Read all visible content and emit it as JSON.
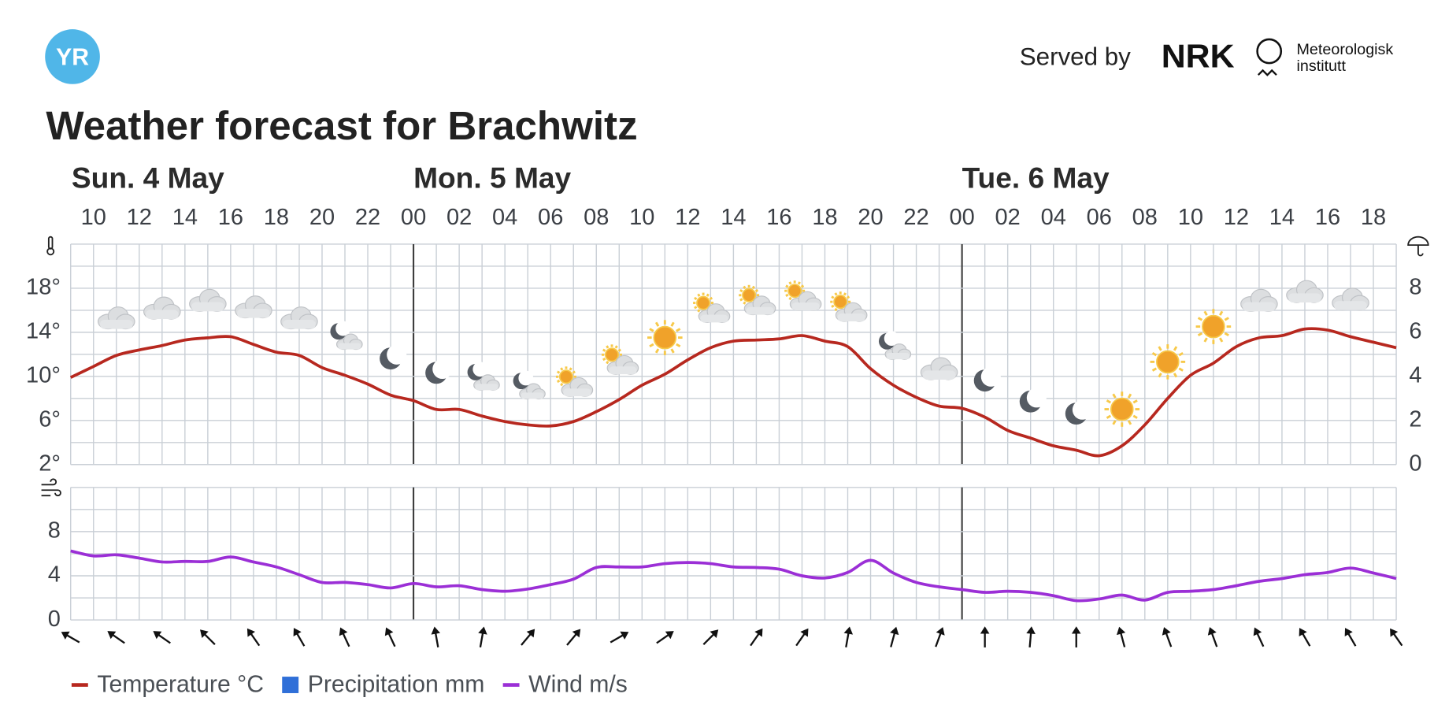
{
  "header": {
    "logo": "YR",
    "served_by": "Served by",
    "partner": "NRK",
    "institute": [
      "Meteorologisk",
      "institutt"
    ]
  },
  "title": "Weather forecast for Brachwitz",
  "chart_data": [
    {
      "type": "line",
      "days": [
        "Sun. 4 May",
        "Mon. 5 May",
        "Tue. 6 May"
      ],
      "categories": [
        null,
        "10",
        null,
        "12",
        null,
        "14",
        null,
        "16",
        null,
        "18",
        null,
        "20",
        null,
        "22",
        null,
        "00",
        null,
        "02",
        null,
        "04",
        null,
        "06",
        null,
        "08",
        null,
        "10",
        null,
        "12",
        null,
        "14",
        null,
        "16",
        null,
        "18",
        null,
        "20",
        null,
        "22",
        null,
        "00",
        null,
        "02",
        null,
        "04",
        null,
        "06",
        null,
        "08",
        null,
        "10",
        null,
        "12",
        null,
        "14",
        null,
        "16",
        null,
        "18",
        null
      ],
      "ylim": [
        2,
        22
      ],
      "yticks": [
        {
          "value": 2,
          "label": "2°"
        },
        {
          "value": 6,
          "label": "6°"
        },
        {
          "value": 10,
          "label": "10°"
        },
        {
          "value": 14,
          "label": "14°"
        },
        {
          "value": 18,
          "label": "18°"
        }
      ],
      "y2lim": [
        0,
        10
      ],
      "y2ticks": [
        0,
        2,
        4,
        6,
        8
      ],
      "grid": true,
      "series": [
        {
          "name": "Temperature °C",
          "color": "#b7281f",
          "values": [
            9.9,
            10.9,
            11.9,
            12.4,
            12.8,
            13.3,
            13.5,
            13.6,
            12.9,
            12.2,
            11.9,
            10.8,
            10.1,
            9.3,
            8.3,
            7.8,
            7.0,
            7.0,
            6.4,
            5.9,
            5.6,
            5.5,
            5.9,
            6.8,
            7.9,
            9.2,
            10.2,
            11.5,
            12.6,
            13.2,
            13.3,
            13.4,
            13.7,
            13.2,
            12.7,
            10.7,
            9.2,
            8.1,
            7.3,
            7.1,
            6.3,
            5.1,
            4.4,
            3.7,
            3.3,
            2.8,
            3.7,
            5.6,
            8.0,
            10.1,
            11.2,
            12.7,
            13.5,
            13.7,
            14.3,
            14.2,
            13.6,
            13.1,
            12.6
          ]
        },
        {
          "name": "Precipitation mm",
          "color": "#2f6fd8",
          "type": "bar",
          "axis": "y2",
          "values": [
            0,
            0,
            0,
            0,
            0,
            0,
            0,
            0,
            0,
            0,
            0,
            0,
            0,
            0,
            0,
            0,
            0,
            0,
            0,
            0,
            0,
            0,
            0,
            0,
            0,
            0,
            0,
            0,
            0,
            0,
            0,
            0,
            0,
            0,
            0,
            0,
            0,
            0,
            0,
            0,
            0,
            0,
            0,
            0,
            0,
            0,
            0,
            0,
            0,
            0,
            0,
            0,
            0,
            0,
            0,
            0,
            0,
            0,
            0
          ]
        }
      ]
    },
    {
      "type": "line",
      "ylim": [
        0,
        12
      ],
      "yticks": [
        0,
        4,
        8
      ],
      "grid": true,
      "series": [
        {
          "name": "Wind m/s",
          "color": "#9b2fd6",
          "values": [
            6.25,
            5.8,
            5.9,
            5.6,
            5.25,
            5.3,
            5.3,
            5.7,
            5.25,
            4.8,
            4.1,
            3.4,
            3.4,
            3.2,
            2.9,
            3.3,
            3.0,
            3.1,
            2.75,
            2.6,
            2.8,
            3.2,
            3.7,
            4.75,
            4.8,
            4.8,
            5.1,
            5.2,
            5.1,
            4.8,
            4.75,
            4.6,
            4.0,
            3.8,
            4.3,
            5.4,
            4.25,
            3.4,
            3.0,
            2.75,
            2.5,
            2.6,
            2.5,
            2.2,
            1.75,
            1.9,
            2.25,
            1.8,
            2.5,
            2.6,
            2.75,
            3.1,
            3.5,
            3.75,
            4.1,
            4.3,
            4.7,
            4.25,
            3.75
          ]
        }
      ],
      "wind_direction": [
        120,
        null,
        125,
        null,
        125,
        null,
        135,
        null,
        145,
        null,
        150,
        null,
        155,
        null,
        155,
        null,
        170,
        null,
        190,
        null,
        220,
        null,
        220,
        null,
        240,
        null,
        235,
        null,
        225,
        null,
        215,
        null,
        215,
        null,
        190,
        null,
        195,
        null,
        200,
        null,
        180,
        null,
        185,
        null,
        180,
        null,
        165,
        null,
        160,
        null,
        160,
        null,
        155,
        null,
        150,
        null,
        150,
        null,
        145
      ]
    }
  ]
}
